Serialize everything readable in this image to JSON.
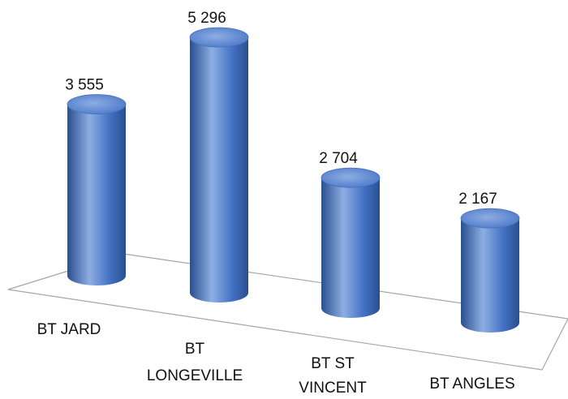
{
  "chart_data": {
    "type": "bar",
    "style": "3d-cylinder",
    "categories": [
      [
        "BT JARD"
      ],
      [
        "BT",
        "LONGEVILLE"
      ],
      [
        "BT ST",
        "VINCENT"
      ],
      [
        "BT ANGLES"
      ]
    ],
    "values": [
      3555,
      5296,
      2704,
      2167
    ],
    "value_labels": [
      "3 555",
      "5 296",
      "2 704",
      "2 167"
    ],
    "title": "",
    "xlabel": "",
    "ylabel": "",
    "ylim": [
      0,
      5500
    ],
    "grid": false,
    "legend": "none",
    "colors": {
      "bar": "#4472c4",
      "bar_dark": "#2a4f8f",
      "bar_light": "#8eaee3",
      "floor_line": "#a6a6a6",
      "text": "#111111"
    }
  }
}
